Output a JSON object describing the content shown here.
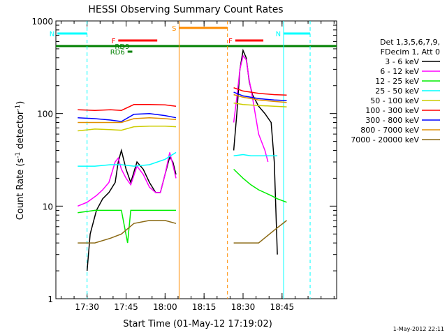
{
  "chart_data": {
    "type": "line",
    "title": "HESSI Observing Summary Count Rates",
    "xlabel": "Start Time (01-May-12 17:19:02)",
    "ylabel": "Count Rate (s⁻¹ detector⁻¹)",
    "ylabel_parts": [
      "Count Rate (s",
      "-1",
      " detector",
      "-1",
      ")"
    ],
    "xlim_minutes": [
      17.3,
      19.1
    ],
    "ylim": [
      1,
      1000
    ],
    "yscale": "log",
    "x_ticks": [
      {
        "value": 17.5,
        "label": "17:30"
      },
      {
        "value": 17.75,
        "label": "17:45"
      },
      {
        "value": 18.0,
        "label": "18:00"
      },
      {
        "value": 18.25,
        "label": "18:15"
      },
      {
        "value": 18.5,
        "label": "18:30"
      },
      {
        "value": 18.75,
        "label": "18:45"
      }
    ],
    "y_ticks": [
      {
        "value": 1,
        "label": "1"
      },
      {
        "value": 10,
        "label": "10"
      },
      {
        "value": 100,
        "label": "100"
      },
      {
        "value": 1000,
        "label": "1000"
      }
    ],
    "legend_header": [
      "Det 1,3,5,6,7,9,",
      "FDecim 1, Att 0"
    ],
    "series": [
      {
        "name": "3 - 6 keV",
        "color": "#000000",
        "x": [
          17.5,
          17.52,
          17.56,
          17.6,
          17.64,
          17.68,
          17.7,
          17.72,
          17.75,
          17.78,
          17.82,
          17.86,
          17.9,
          17.94,
          17.97,
          18.0,
          18.03,
          18.05,
          18.07,
          18.44,
          18.46,
          18.48,
          18.5,
          18.52,
          18.54,
          18.56,
          18.6,
          18.64,
          18.68,
          18.7,
          18.72
        ],
        "y": [
          2,
          5,
          9,
          12,
          14,
          18,
          30,
          40,
          25,
          18,
          30,
          25,
          18,
          14,
          14,
          22,
          34,
          30,
          22,
          40,
          100,
          300,
          480,
          400,
          220,
          160,
          120,
          100,
          80,
          30,
          3
        ]
      },
      {
        "name": "6 - 12 keV",
        "color": "#ff00ff",
        "x": [
          17.44,
          17.5,
          17.56,
          17.6,
          17.64,
          17.68,
          17.7,
          17.72,
          17.75,
          17.78,
          17.82,
          17.86,
          17.9,
          17.94,
          17.97,
          18.0,
          18.03,
          18.05,
          18.07,
          18.44,
          18.46,
          18.48,
          18.5,
          18.52,
          18.54,
          18.56,
          18.6,
          18.64,
          18.66
        ],
        "y": [
          10,
          11,
          13,
          15,
          18,
          30,
          33,
          25,
          20,
          17,
          27,
          22,
          16,
          14,
          14,
          22,
          38,
          28,
          20,
          80,
          150,
          300,
          420,
          380,
          230,
          150,
          60,
          40,
          30
        ]
      },
      {
        "name": "12 - 25 keV",
        "color": "#00ee00",
        "x": [
          17.44,
          17.55,
          17.65,
          17.72,
          17.76,
          17.78,
          17.82,
          17.9,
          18.0,
          18.07,
          18.44,
          18.5,
          18.55,
          18.6,
          18.68,
          18.72,
          18.78
        ],
        "y": [
          8.5,
          9,
          9,
          9,
          4,
          9,
          9,
          9,
          9,
          9,
          25,
          20,
          17,
          15,
          13,
          12,
          11
        ]
      },
      {
        "name": "25 - 50 keV",
        "color": "#00ffff",
        "x": [
          17.44,
          17.55,
          17.65,
          17.72,
          17.8,
          17.9,
          18.0,
          18.07,
          18.44,
          18.5,
          18.55,
          18.6,
          18.68,
          18.72
        ],
        "y": [
          27,
          27,
          28,
          28,
          27,
          28,
          32,
          38,
          35,
          36,
          35,
          35,
          35,
          35
        ]
      },
      {
        "name": "50 - 100 keV",
        "color": "#cccc00",
        "x": [
          17.44,
          17.55,
          17.65,
          17.72,
          17.8,
          17.9,
          18.0,
          18.07,
          18.44,
          18.5,
          18.6,
          18.7,
          18.78
        ],
        "y": [
          65,
          68,
          67,
          66,
          72,
          73,
          73,
          72,
          130,
          125,
          122,
          120,
          118
        ]
      },
      {
        "name": "100 - 300 keV",
        "color": "#ff0000",
        "x": [
          17.44,
          17.55,
          17.65,
          17.72,
          17.8,
          17.9,
          18.0,
          18.07,
          18.44,
          18.5,
          18.6,
          18.7,
          18.78
        ],
        "y": [
          110,
          108,
          110,
          108,
          125,
          125,
          124,
          120,
          190,
          175,
          165,
          160,
          158
        ]
      },
      {
        "name": "300 - 800 keV",
        "color": "#0000ff",
        "x": [
          17.44,
          17.55,
          17.65,
          17.72,
          17.8,
          17.9,
          18.0,
          18.07,
          18.44,
          18.5,
          18.6,
          18.7,
          18.78
        ],
        "y": [
          90,
          88,
          85,
          82,
          98,
          100,
          95,
          90,
          170,
          155,
          145,
          140,
          138
        ]
      },
      {
        "name": "800 - 7000 keV",
        "color": "#e08f00",
        "x": [
          17.44,
          17.55,
          17.65,
          17.72,
          17.8,
          17.9,
          18.0,
          18.07,
          18.44,
          18.5,
          18.6,
          18.7,
          18.78
        ],
        "y": [
          80,
          80,
          80,
          80,
          88,
          90,
          88,
          86,
          160,
          150,
          140,
          135,
          132
        ]
      },
      {
        "name": "7000 - 20000 keV",
        "color": "#8b6914",
        "x": [
          17.44,
          17.55,
          17.65,
          17.72,
          17.8,
          17.9,
          18.0,
          18.07,
          18.44,
          18.5,
          18.6,
          18.7,
          18.78
        ],
        "y": [
          4,
          4,
          4.5,
          5,
          6.5,
          7,
          7,
          6.5,
          4,
          4,
          4,
          5.5,
          7
        ]
      }
    ],
    "markers": [
      {
        "label": "N",
        "color": "#00ffff",
        "x0": 17.31,
        "x1": 17.5
      },
      {
        "label": "N",
        "color": "#00ffff",
        "x0": 18.76,
        "x1": 18.93
      },
      {
        "label": "F",
        "color": "#ff0000",
        "x0": 17.7,
        "x1": 17.95
      },
      {
        "label": "F",
        "color": "#ff0000",
        "x0": 18.45,
        "x1": 18.63
      },
      {
        "label": "S",
        "color": "#ff8c00",
        "x0": 18.09,
        "x1": 18.4
      },
      {
        "label": "RD9",
        "color": "#008000",
        "x0": 17.79,
        "x1": 17.81
      },
      {
        "label": "RD6",
        "color": "#008000",
        "x0": 17.76,
        "x1": 17.79
      }
    ]
  },
  "timestamp": "1-May-2012 22:11"
}
